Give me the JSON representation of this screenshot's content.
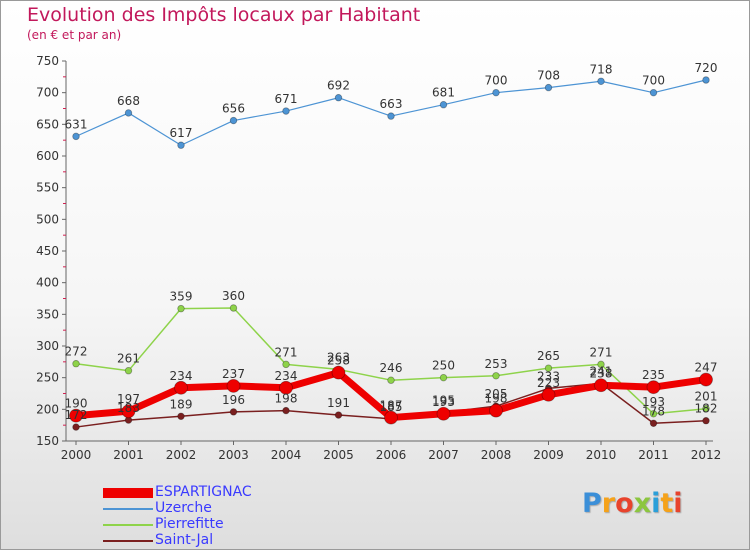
{
  "title": "Evolution des Impôts locaux par Habitant",
  "subtitle": "(en € et par an)",
  "brand": {
    "text": "Proxiti",
    "letter_colors": [
      "#3b8fd8",
      "#f5a21a",
      "#e8432c",
      "#8cc63f",
      "#2b9fd9",
      "#f5a21a",
      "#e8432c"
    ]
  },
  "chart_data": {
    "type": "line",
    "title": "Evolution des Impôts locaux par Habitant",
    "subtitle": "(en € et par an)",
    "x": [
      "2000",
      "2001",
      "2002",
      "2003",
      "2004",
      "2005",
      "2006",
      "2007",
      "2008",
      "2009",
      "2010",
      "2011",
      "2012"
    ],
    "ylim": [
      150,
      750
    ],
    "yticks": [
      150,
      200,
      250,
      300,
      350,
      400,
      450,
      500,
      550,
      600,
      650,
      700,
      750
    ],
    "grid": false,
    "legend_position": "bottom-left",
    "series": [
      {
        "name": "ESPARTIGNAC",
        "color": "#ee0000",
        "values": [
          190,
          197,
          234,
          237,
          234,
          258,
          187,
          193,
          198,
          223,
          238,
          235,
          247
        ],
        "labels": [
          "190",
          "197",
          "234",
          "237",
          "234",
          "258",
          "187",
          "193",
          "198",
          "223",
          "238",
          "235",
          "247"
        ]
      },
      {
        "name": "Uzerche",
        "color": "#4d94d4",
        "values": [
          631,
          668,
          617,
          656,
          671,
          692,
          663,
          681,
          700,
          708,
          718,
          700,
          720
        ],
        "labels": [
          "631",
          "668",
          "617",
          "656",
          "671",
          "692",
          "663",
          "681",
          "700",
          "708",
          "718",
          "700",
          "720"
        ]
      },
      {
        "name": "Pierrefitte",
        "color": "#8ed34a",
        "values": [
          272,
          261,
          359,
          360,
          271,
          263,
          246,
          250,
          253,
          265,
          271,
          193,
          201
        ],
        "labels": [
          "272",
          "261",
          "359",
          "360",
          "271",
          "263",
          "246",
          "250",
          "253",
          "265",
          "271",
          "193",
          "201"
        ]
      },
      {
        "name": "Saint-Jal",
        "color": "#7a1f1f",
        "values": [
          172,
          183,
          189,
          196,
          198,
          191,
          185,
          195,
          205,
          233,
          241,
          178,
          182
        ],
        "labels": [
          "172",
          "183",
          "189",
          "196",
          "198",
          "191",
          "185",
          "195",
          "205",
          "233",
          "241",
          "178",
          "182"
        ]
      }
    ]
  }
}
